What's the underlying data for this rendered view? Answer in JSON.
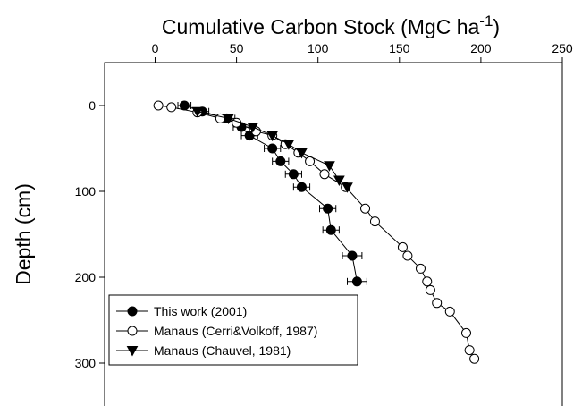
{
  "chart_data": {
    "type": "scatter",
    "x_label": [
      "Cumulative Carbon Stock (MgC ha",
      "-1",
      ")"
    ],
    "y_label": "Depth (cm)",
    "xlim": [
      -31,
      250
    ],
    "xticks": [
      0,
      50,
      100,
      150,
      200,
      250
    ],
    "ylim": [
      -50,
      350
    ],
    "yticks": [
      0,
      100,
      200,
      300
    ],
    "y_inverted": true,
    "legend": "lower left",
    "series": [
      {
        "name": "This work (2001)",
        "marker": "filled-circle",
        "color": "#000000",
        "x": [
          18,
          29,
          44,
          53,
          58,
          72,
          77,
          85,
          90,
          106,
          108,
          121,
          124
        ],
        "y": [
          0,
          7,
          15,
          25,
          35,
          50,
          65,
          80,
          95,
          120,
          145,
          175,
          205
        ],
        "xerr": [
          4,
          4,
          5,
          5,
          5,
          5,
          5,
          5,
          5,
          5,
          5,
          6,
          6
        ]
      },
      {
        "name": "Manaus (Cerri&Volkoff, 1987)",
        "marker": "open-circle",
        "color": "#000000",
        "x": [
          2,
          10,
          26,
          40,
          50,
          62,
          72,
          80,
          88,
          95,
          104,
          117,
          129,
          135,
          152,
          155,
          163,
          167,
          169,
          173,
          181,
          191,
          193,
          196
        ],
        "y": [
          0,
          2,
          8,
          15,
          20,
          30,
          35,
          45,
          55,
          65,
          80,
          95,
          120,
          135,
          165,
          175,
          190,
          205,
          215,
          230,
          240,
          265,
          285,
          295
        ]
      },
      {
        "name": "Manaus (Chauvel, 1981)",
        "marker": "triangle-down",
        "color": "#000000",
        "x": [
          26,
          45,
          60,
          72,
          82,
          90,
          107,
          113,
          118
        ],
        "y": [
          7,
          15,
          25,
          35,
          45,
          55,
          70,
          87,
          95
        ]
      }
    ]
  }
}
